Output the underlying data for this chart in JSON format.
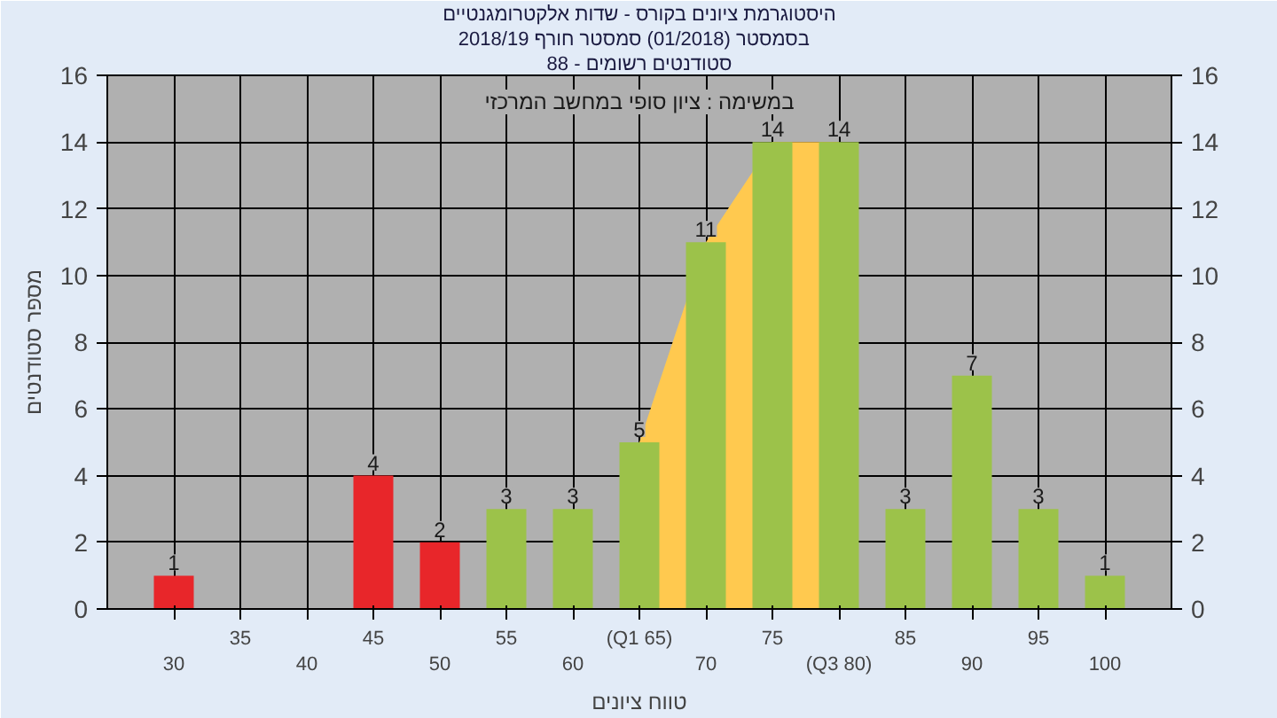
{
  "chart_data": {
    "type": "bar",
    "title": "היסטוגרמת ציונים בקורס - שדות אלקטרומגנטיים",
    "subtitle": "בסמסטר  (01/2018)  סמסטר חורף 2018/19",
    "xlabel": "טווח ציונים",
    "ylabel": "מספר סטודנטים",
    "annotations": [
      "סטודנטים רשומים - 88",
      "במשימה : ציון סופי במחשב המרכזי"
    ],
    "categories": [
      "30",
      "35",
      "40",
      "45",
      "50",
      "55",
      "60",
      "(Q1 65)",
      "70",
      "75",
      "(Q3 80)",
      "85",
      "90",
      "95",
      "100"
    ],
    "series": [
      {
        "type": "area",
        "color": "#ffc94f",
        "values": [
          null,
          null,
          null,
          null,
          null,
          null,
          null,
          5,
          11,
          14,
          14,
          null,
          null,
          null,
          null
        ]
      },
      {
        "colors": [
          "#e8262a",
          "#e8262a",
          "#e8262a",
          "#e8262a",
          "#e8262a",
          "#9cc24a",
          "#9cc24a",
          "#9cc24a",
          "#9cc24a",
          "#9cc24a",
          "#9cc24a",
          "#9cc24a",
          "#9cc24a",
          "#9cc24a",
          "#9cc24a"
        ],
        "values": [
          1,
          0,
          0,
          4,
          2,
          3,
          3,
          5,
          11,
          14,
          14,
          3,
          7,
          3,
          1
        ],
        "value_labels": [
          "1",
          null,
          null,
          "4",
          "2",
          "3",
          "3",
          "5",
          "11",
          "14",
          "14",
          "3",
          "7",
          "3",
          "1"
        ]
      }
    ],
    "ylim": [
      0,
      16
    ],
    "yticks": [
      0,
      2,
      4,
      6,
      8,
      10,
      12,
      14,
      16
    ],
    "y2lim": [
      0,
      16
    ],
    "y2ticks": [
      0,
      2,
      4,
      6,
      8,
      10,
      12,
      14,
      16
    ],
    "grid": true
  }
}
